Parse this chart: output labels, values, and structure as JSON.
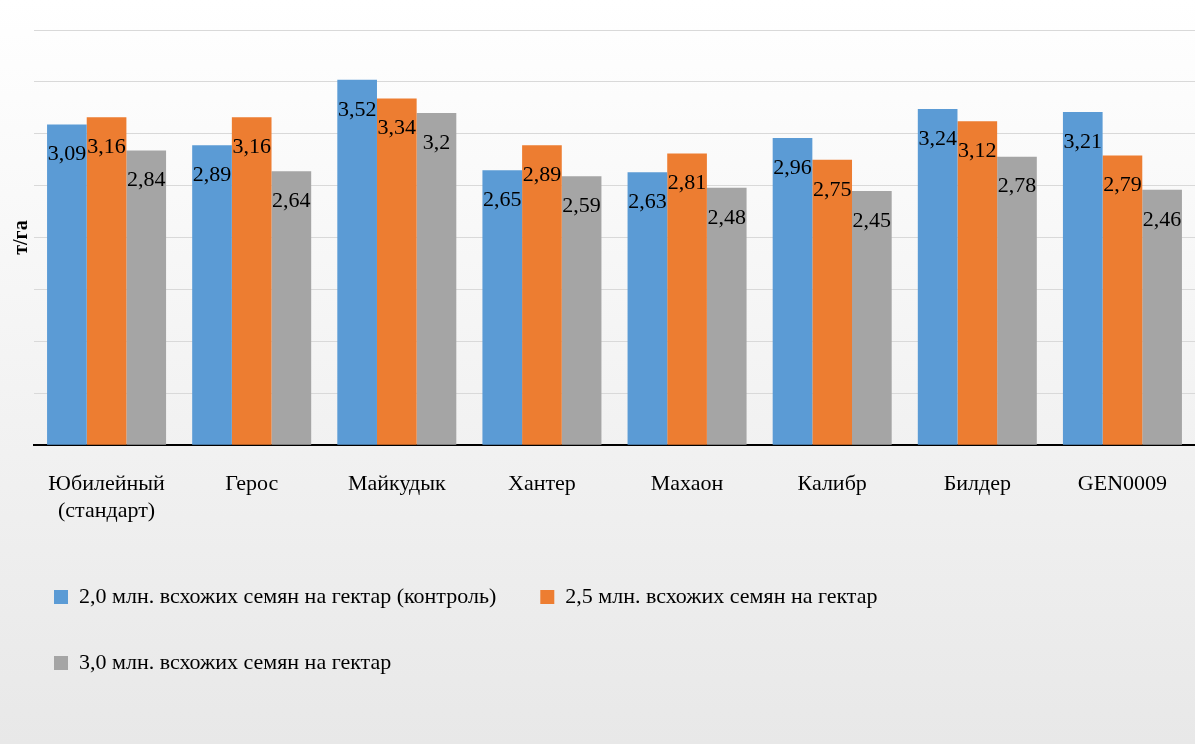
{
  "chart_data": {
    "type": "bar",
    "ylabel": "т/га",
    "categories": [
      "Юбилейный (стандарт)",
      "Герос",
      "Майкудык",
      "Хантер",
      "Махаон",
      "Калибр",
      "Билдер",
      "GEN0009"
    ],
    "series": [
      {
        "name": "2,0 млн. всхожих семян на гектар (контроль)",
        "color": "#5b9bd5",
        "values": [
          3.09,
          2.89,
          3.52,
          2.65,
          2.63,
          2.96,
          3.24,
          3.21
        ],
        "value_labels": [
          "3,09",
          "2,89",
          "3,52",
          "2,65",
          "2,63",
          "2,96",
          "3,24",
          "3,21"
        ]
      },
      {
        "name": "2,5 млн. всхожих семян на гектар",
        "color": "#ed7d31",
        "values": [
          3.16,
          3.16,
          3.34,
          2.89,
          2.81,
          2.75,
          3.12,
          2.79
        ],
        "value_labels": [
          "3,16",
          "3,16",
          "3,34",
          "2,89",
          "2,81",
          "2,75",
          "3,12",
          "2,79"
        ]
      },
      {
        "name": "3,0 млн. всхожих семян на гектар",
        "color": "#a5a5a5",
        "values": [
          2.84,
          2.64,
          3.2,
          2.59,
          2.48,
          2.45,
          2.78,
          2.46
        ],
        "value_labels": [
          "2,84",
          "2,64",
          "3,2",
          "2,59",
          "2,48",
          "2,45",
          "2,78",
          "2,46"
        ]
      }
    ],
    "grid": "y",
    "legend": "bottom",
    "tick_labels": "x"
  }
}
